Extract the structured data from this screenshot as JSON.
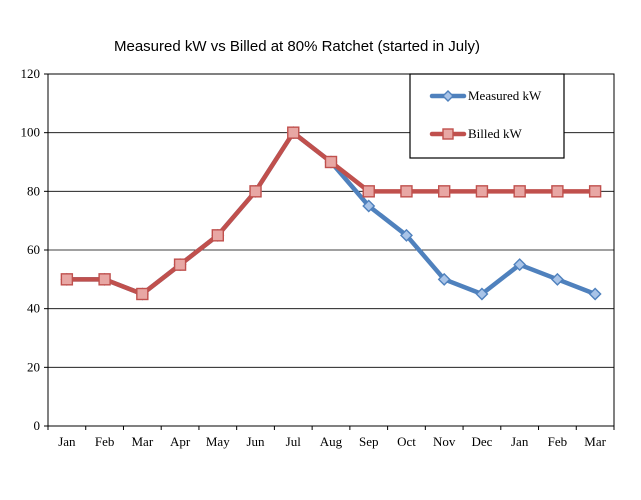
{
  "chart_data": {
    "type": "line",
    "title": "Measured kW vs Billed at 80% Ratchet (started in July)",
    "xlabel": "",
    "ylabel": "",
    "categories": [
      "Jan",
      "Feb",
      "Mar",
      "Apr",
      "May",
      "Jun",
      "Jul",
      "Aug",
      "Sep",
      "Oct",
      "Nov",
      "Dec",
      "Jan",
      "Feb",
      "Mar"
    ],
    "ylim": [
      0,
      120
    ],
    "yticks": [
      0,
      20,
      40,
      60,
      80,
      100,
      120
    ],
    "grid": true,
    "legend_position": "top-right",
    "series": [
      {
        "name": "Measured kW",
        "color": "#4F81BD",
        "marker": "diamond",
        "values": [
          50,
          50,
          45,
          55,
          65,
          80,
          100,
          90,
          75,
          65,
          50,
          45,
          55,
          50,
          45
        ]
      },
      {
        "name": "Billed kW",
        "color": "#C0504D",
        "marker": "square",
        "values": [
          50,
          50,
          45,
          55,
          65,
          80,
          100,
          90,
          80,
          80,
          80,
          80,
          80,
          80,
          80
        ]
      }
    ]
  }
}
